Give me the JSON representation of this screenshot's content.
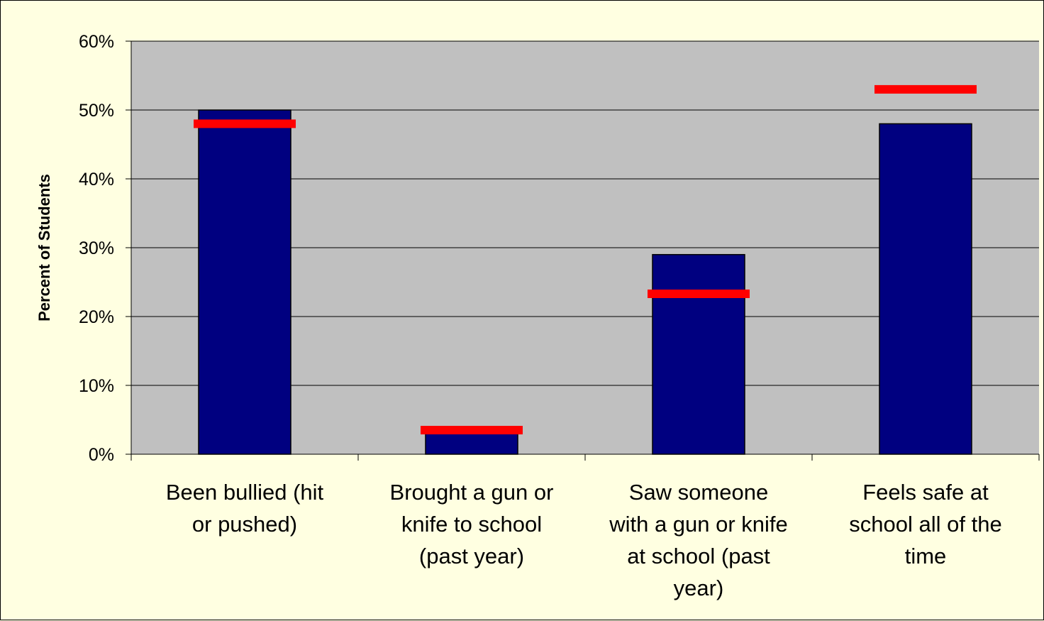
{
  "chart_data": {
    "type": "bar",
    "title": "",
    "xlabel": "",
    "ylabel": "Percent of Students",
    "ylim": [
      0,
      60
    ],
    "yticks": [
      0,
      10,
      20,
      30,
      40,
      50,
      60
    ],
    "ytick_labels": [
      "0%",
      "10%",
      "20%",
      "30%",
      "40%",
      "50%",
      "60%"
    ],
    "grid": true,
    "legend": "none",
    "categories": [
      [
        "Been bullied (hit",
        "or pushed)"
      ],
      [
        "Brought a gun or",
        "knife to school",
        "(past year)"
      ],
      [
        "Saw someone",
        "with a gun or knife",
        "at school (past",
        "year)"
      ],
      [
        "Feels safe at",
        "school all of the",
        "time"
      ]
    ],
    "series": [
      {
        "values": [
          50,
          3,
          29,
          48
        ],
        "color": "#000080",
        "kind": "bar"
      },
      {
        "values": [
          48,
          3.5,
          23.3,
          53
        ],
        "color": "#ff0000",
        "kind": "marker-line"
      }
    ],
    "plot_background": "#c0c0c0"
  }
}
